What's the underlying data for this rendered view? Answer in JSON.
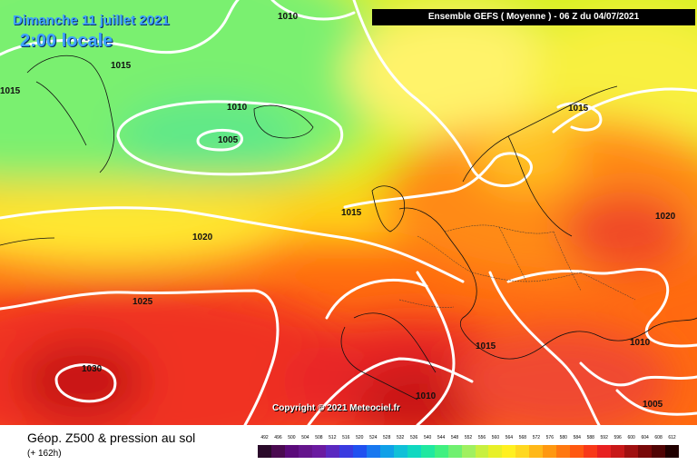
{
  "header": {
    "date": "Dimanche 11 juillet 2021",
    "time": "2:00 locale",
    "run_info": "Ensemble GEFS  ( Moyenne )  -  06 Z du 04/07/2021"
  },
  "copyright": "Copyright © 2021 Meteociel.fr",
  "footer": {
    "title": "Géop. Z500 & pression au sol",
    "subtitle": "(+ 162h)"
  },
  "isobar_labels": [
    "1010",
    "1015",
    "1015",
    "1010",
    "1005",
    "1015",
    "1020",
    "1025",
    "1030",
    "1015",
    "1015",
    "1010",
    "1020",
    "1010",
    "1005"
  ],
  "scale": {
    "ticks": [
      "492",
      "496",
      "500",
      "504",
      "508",
      "512",
      "516",
      "520",
      "524",
      "528",
      "532",
      "536",
      "540",
      "544",
      "548",
      "552",
      "556",
      "560",
      "564",
      "568",
      "572",
      "576",
      "580",
      "584",
      "588",
      "592",
      "596",
      "600",
      "604",
      "608",
      "612"
    ],
    "colors": [
      "#2a0a2a",
      "#4a0a50",
      "#5a0a7a",
      "#64148c",
      "#6a1aa0",
      "#5a28c0",
      "#3a3ae0",
      "#2050f0",
      "#1878f0",
      "#10a0e8",
      "#10c0d8",
      "#10d8c0",
      "#20e8a0",
      "#40f080",
      "#70f070",
      "#a0f060",
      "#c8f040",
      "#e8f028",
      "#fff020",
      "#ffd820",
      "#ffb818",
      "#ff9810",
      "#ff7810",
      "#ff5810",
      "#f83818",
      "#e82020",
      "#c81818",
      "#a01010",
      "#780808",
      "#500404",
      "#200000"
    ]
  },
  "colors": {
    "isobar": "#ffffff",
    "title_blue": "#3fa2ff"
  }
}
